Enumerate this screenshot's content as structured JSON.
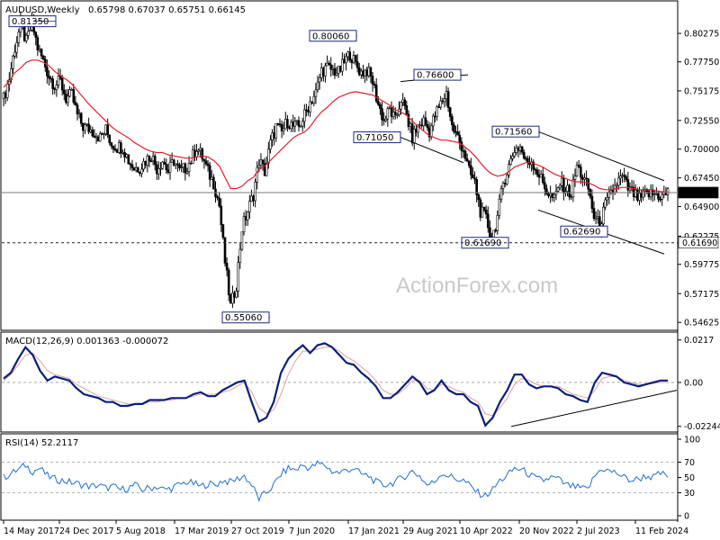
{
  "header": {
    "title": "AUDUSD,Weekly",
    "ohlc": "0.65798 0.67037 0.65751 0.66145"
  },
  "watermark": "ActionForex.com",
  "colors": {
    "candles": "#000000",
    "ma": "#e0202a",
    "macd": "#0b1f7a",
    "signal": "#e0a0a0",
    "rsi": "#1e6fd0",
    "grid": "#9a9a9a",
    "trendline": "#000000"
  },
  "chart_data": [
    {
      "type": "candlestick",
      "title": "AUDUSD,Weekly",
      "ylim": [
        0.548,
        0.818
      ],
      "y_ticks": [
        "0.80275",
        "0.77750",
        "0.75175",
        "0.72550",
        "0.70000",
        "0.67450",
        "0.64900",
        "0.62275",
        "0.59775",
        "0.57175",
        "0.54625"
      ],
      "price_markers": [
        {
          "label": "0.66145",
          "value": 0.66145,
          "line": "solid",
          "highlight": true
        },
        {
          "label": "0.61690",
          "value": 0.6169,
          "line": "dashed",
          "highlight": false
        }
      ],
      "x_ticks": [
        "14 May 2017",
        "24 Dec 2017",
        "5 Aug 2018",
        "17 Mar 2019",
        "27 Oct 2019",
        "7 Jun 2020",
        "17 Jan 2021",
        "29 Aug 2021",
        "10 Apr 2022",
        "20 Nov 2022",
        "2 Jul 2023",
        "11 Feb 2024"
      ],
      "series_closes": [
        0.745,
        0.763,
        0.79,
        0.81,
        0.795,
        0.812,
        0.79,
        0.778,
        0.765,
        0.757,
        0.76,
        0.745,
        0.748,
        0.73,
        0.72,
        0.718,
        0.715,
        0.71,
        0.717,
        0.705,
        0.702,
        0.702,
        0.69,
        0.683,
        0.684,
        0.69,
        0.695,
        0.683,
        0.69,
        0.68,
        0.69,
        0.68,
        0.683,
        0.69,
        0.702,
        0.693,
        0.68,
        0.67,
        0.65,
        0.6,
        0.56,
        0.58,
        0.63,
        0.645,
        0.66,
        0.69,
        0.68,
        0.705,
        0.72,
        0.715,
        0.725,
        0.72,
        0.72,
        0.73,
        0.742,
        0.75,
        0.77,
        0.772,
        0.77,
        0.768,
        0.777,
        0.785,
        0.775,
        0.768,
        0.77,
        0.76,
        0.74,
        0.725,
        0.735,
        0.725,
        0.745,
        0.73,
        0.71,
        0.72,
        0.725,
        0.716,
        0.73,
        0.74,
        0.75,
        0.72,
        0.71,
        0.7,
        0.68,
        0.67,
        0.645,
        0.638,
        0.62,
        0.64,
        0.67,
        0.685,
        0.7,
        0.702,
        0.688,
        0.69,
        0.68,
        0.67,
        0.66,
        0.655,
        0.67,
        0.665,
        0.66,
        0.685,
        0.675,
        0.665,
        0.64,
        0.632,
        0.65,
        0.66,
        0.67,
        0.675,
        0.665,
        0.66,
        0.655,
        0.66,
        0.66,
        0.66,
        0.658,
        0.6615
      ],
      "ma_values": [
        0.755,
        0.76,
        0.768,
        0.772,
        0.777,
        0.779,
        0.779,
        0.777,
        0.774,
        0.769,
        0.765,
        0.762,
        0.758,
        0.752,
        0.746,
        0.74,
        0.735,
        0.73,
        0.725,
        0.72,
        0.716,
        0.713,
        0.71,
        0.706,
        0.703,
        0.7,
        0.698,
        0.697,
        0.697,
        0.695,
        0.694,
        0.693,
        0.692,
        0.692,
        0.693,
        0.694,
        0.693,
        0.69,
        0.685,
        0.675,
        0.665,
        0.665,
        0.667,
        0.672,
        0.675,
        0.682,
        0.685,
        0.69,
        0.695,
        0.7,
        0.705,
        0.71,
        0.713,
        0.715,
        0.72,
        0.727,
        0.733,
        0.737,
        0.742,
        0.746,
        0.748,
        0.75,
        0.751,
        0.75,
        0.749,
        0.748,
        0.745,
        0.742,
        0.739,
        0.735,
        0.733,
        0.73,
        0.725,
        0.72,
        0.716,
        0.712,
        0.71,
        0.708,
        0.708,
        0.707,
        0.706,
        0.703,
        0.699,
        0.694,
        0.688,
        0.682,
        0.678,
        0.676,
        0.677,
        0.68,
        0.684,
        0.686,
        0.688,
        0.688,
        0.686,
        0.684,
        0.681,
        0.678,
        0.676,
        0.674,
        0.672,
        0.671,
        0.671,
        0.67,
        0.668,
        0.665,
        0.664,
        0.664,
        0.665,
        0.666,
        0.666,
        0.665,
        0.664,
        0.664,
        0.664,
        0.663,
        0.662,
        0.662
      ],
      "annotations": [
        {
          "label": "0.81350",
          "value": 0.8135
        },
        {
          "label": "0.55060",
          "value": 0.5506
        },
        {
          "label": "0.80060",
          "value": 0.8006
        },
        {
          "label": "0.76600",
          "value": 0.766
        },
        {
          "label": "0.71050",
          "value": 0.7105
        },
        {
          "label": "0.71560",
          "value": 0.7156
        },
        {
          "label": "0.61690",
          "value": 0.6169
        },
        {
          "label": "0.62690",
          "value": 0.6269
        }
      ]
    },
    {
      "type": "line",
      "title": "MACD(12,26,9) 0.001363 -0.000072",
      "ylim": [
        -0.0244,
        0.0225
      ],
      "y_ticks": [
        "0.0217",
        "0.00",
        "-0.022445"
      ],
      "zero_line": true,
      "series": [
        {
          "values": [
            0.002,
            0.005,
            0.012,
            0.018,
            0.014,
            0.006,
            0.001,
            0.003,
            0.002,
            0.001,
            -0.003,
            -0.006,
            -0.007,
            -0.008,
            -0.01,
            -0.01,
            -0.012,
            -0.012,
            -0.011,
            -0.011,
            -0.009,
            -0.009,
            -0.009,
            -0.008,
            -0.008,
            -0.008,
            -0.006,
            -0.005,
            -0.007,
            -0.007,
            -0.004,
            -0.002,
            0.0,
            0.001,
            -0.01,
            -0.02,
            -0.018,
            -0.01,
            0.005,
            0.012,
            0.016,
            0.019,
            0.015,
            0.019,
            0.02,
            0.018,
            0.014,
            0.01,
            0.009,
            0.005,
            0.002,
            -0.002,
            -0.008,
            -0.008,
            -0.005,
            -0.001,
            0.003,
            0.0,
            -0.006,
            -0.004,
            0.001,
            -0.004,
            -0.006,
            -0.006,
            -0.01,
            -0.012,
            -0.022,
            -0.018,
            -0.01,
            -0.004,
            0.004,
            0.004,
            -0.001,
            -0.003,
            -0.002,
            -0.002,
            -0.003,
            -0.006,
            -0.007,
            -0.009,
            -0.01,
            0.0,
            0.005,
            0.004,
            0.003,
            0.0,
            -0.001,
            -0.002,
            -0.001,
            0.0,
            0.001,
            0.001
          ]
        },
        {
          "values": [
            0.001,
            0.004,
            0.009,
            0.014,
            0.015,
            0.011,
            0.006,
            0.004,
            0.003,
            0.002,
            -0.001,
            -0.003,
            -0.005,
            -0.007,
            -0.008,
            -0.009,
            -0.01,
            -0.011,
            -0.011,
            -0.011,
            -0.01,
            -0.01,
            -0.009,
            -0.009,
            -0.008,
            -0.008,
            -0.007,
            -0.006,
            -0.006,
            -0.006,
            -0.005,
            -0.004,
            -0.002,
            0.0,
            -0.005,
            -0.013,
            -0.016,
            -0.014,
            -0.006,
            0.004,
            0.011,
            0.016,
            0.016,
            0.017,
            0.018,
            0.018,
            0.016,
            0.013,
            0.011,
            0.008,
            0.005,
            0.001,
            -0.004,
            -0.006,
            -0.006,
            -0.003,
            0.001,
            0.001,
            -0.003,
            -0.004,
            -0.001,
            -0.002,
            -0.004,
            -0.005,
            -0.008,
            -0.01,
            -0.016,
            -0.017,
            -0.013,
            -0.008,
            -0.001,
            0.002,
            0.001,
            -0.001,
            -0.002,
            -0.002,
            -0.002,
            -0.004,
            -0.006,
            -0.007,
            -0.008,
            -0.004,
            0.002,
            0.003,
            0.003,
            0.001,
            0.0,
            -0.001,
            -0.001,
            -0.0005,
            0.0,
            0.0
          ]
        }
      ]
    },
    {
      "type": "line",
      "title": "RSI(14) 52.2117",
      "ylim": [
        0,
        100
      ],
      "y_ticks": [
        "100",
        "70",
        "50",
        "30",
        "0"
      ],
      "levels": [
        70,
        30
      ],
      "series": [
        {
          "values": [
            50,
            55,
            60,
            66,
            58,
            62,
            52,
            48,
            46,
            44,
            42,
            40,
            38,
            40,
            36,
            38,
            34,
            36,
            40,
            34,
            36,
            38,
            34,
            36,
            40,
            44,
            42,
            38,
            42,
            40,
            46,
            44,
            48,
            52,
            40,
            22,
            30,
            40,
            54,
            62,
            60,
            66,
            62,
            68,
            66,
            58,
            56,
            60,
            62,
            54,
            52,
            44,
            40,
            42,
            46,
            52,
            58,
            52,
            40,
            44,
            56,
            52,
            48,
            46,
            38,
            30,
            26,
            34,
            46,
            52,
            62,
            60,
            54,
            48,
            46,
            50,
            48,
            40,
            38,
            36,
            34,
            52,
            62,
            58,
            56,
            50,
            46,
            48,
            52,
            50,
            55,
            52
          ]
        }
      ]
    }
  ]
}
